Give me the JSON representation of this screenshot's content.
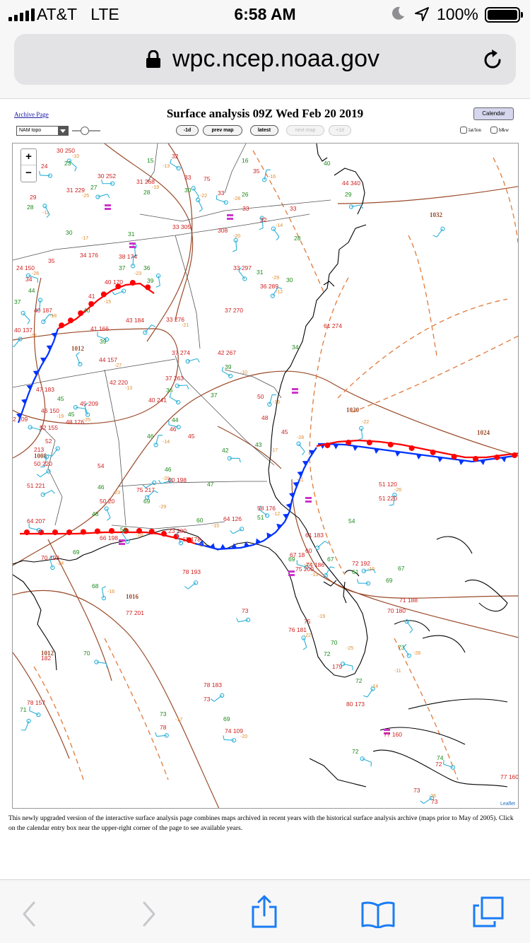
{
  "status_bar": {
    "carrier": "AT&T",
    "network": "LTE",
    "time": "6:58 AM",
    "battery": "100%",
    "icons": [
      "signal-icon",
      "moon-icon",
      "location-icon",
      "battery-icon"
    ]
  },
  "browser": {
    "url": "wpc.ncep.noaa.gov",
    "icons": [
      "lock-icon",
      "reload-icon"
    ]
  },
  "page": {
    "archive_link": "Archive Page",
    "title": "Surface analysis 09Z Wed Feb 20 2019",
    "calendar_button": "Calendar",
    "layer_select": "NAM topo",
    "buttons": {
      "minus1d": "-1d",
      "prev_map": "prev map",
      "latest": "latest",
      "next_map": "next map",
      "plus1d": "+1d"
    },
    "options": {
      "latlon": "lat/lon",
      "bw": "b&w"
    },
    "footer": "This newly upgraded version of the interactive surface analysis page combines maps archived in recent years with the historical surface analysis archive (maps prior to May of 2005). Click on the calendar entry box near the upper-right corner of the page to see available years."
  },
  "map": {
    "zoom_in": "+",
    "zoom_out": "−",
    "attribution": "Leaflet",
    "isobars": [
      "1032",
      "1012",
      "1008",
      "1020",
      "1024",
      "1016",
      "1012"
    ],
    "colors": {
      "isobar": "#9a4a2a",
      "trough": "#e07a3a",
      "cold_front": "#0033ff",
      "warm_front": "#ff0000",
      "station_red": "#d02020",
      "station_green": "#1a8a1a",
      "station_orange": "#e08a2a",
      "wind": "#2ab0d8",
      "coast": "#000000",
      "border": "#555555",
      "highlight": "#cc33cc"
    },
    "stations": [
      {
        "t": "30 250",
        "c": "red"
      },
      {
        "t": "23",
        "c": "green"
      },
      {
        "t": "24",
        "c": "red"
      },
      {
        "t": "15",
        "c": "green"
      },
      {
        "t": "32",
        "c": "red"
      },
      {
        "t": "16",
        "c": "green"
      },
      {
        "t": "35",
        "c": "red"
      },
      {
        "t": "40",
        "c": "green"
      },
      {
        "t": "30 252",
        "c": "red"
      },
      {
        "t": "31 268",
        "c": "red"
      },
      {
        "t": "33",
        "c": "red"
      },
      {
        "t": "75",
        "c": "red"
      },
      {
        "t": "30",
        "c": "green"
      },
      {
        "t": "44 340",
        "c": "red"
      },
      {
        "t": "29",
        "c": "green"
      },
      {
        "t": "31 229",
        "c": "red"
      },
      {
        "t": "27",
        "c": "green"
      },
      {
        "t": "28",
        "c": "green"
      },
      {
        "t": "33",
        "c": "red"
      },
      {
        "t": "26",
        "c": "green"
      },
      {
        "t": "29",
        "c": "red"
      },
      {
        "t": "28",
        "c": "green"
      },
      {
        "t": "33",
        "c": "red"
      },
      {
        "t": "33",
        "c": "red"
      },
      {
        "t": "32",
        "c": "red"
      },
      {
        "t": "28",
        "c": "green"
      },
      {
        "t": "1032",
        "c": "isobar"
      },
      {
        "t": "30",
        "c": "green"
      },
      {
        "t": "31",
        "c": "green"
      },
      {
        "t": "33 305",
        "c": "red"
      },
      {
        "t": "308",
        "c": "red"
      },
      {
        "t": "34 176",
        "c": "red"
      },
      {
        "t": "38 174",
        "c": "red"
      },
      {
        "t": "37",
        "c": "green"
      },
      {
        "t": "36",
        "c": "green"
      },
      {
        "t": "35",
        "c": "red"
      },
      {
        "t": "24 150",
        "c": "red"
      },
      {
        "t": "34",
        "c": "red"
      },
      {
        "t": "33 297",
        "c": "red"
      },
      {
        "t": "31",
        "c": "green"
      },
      {
        "t": "40 170",
        "c": "red"
      },
      {
        "t": "39",
        "c": "green"
      },
      {
        "t": "36 289",
        "c": "red"
      },
      {
        "t": "30",
        "c": "green"
      },
      {
        "t": "44",
        "c": "green"
      },
      {
        "t": "41",
        "c": "red"
      },
      {
        "t": "37",
        "c": "green"
      },
      {
        "t": "37 270",
        "c": "red"
      },
      {
        "t": "40 187",
        "c": "red"
      },
      {
        "t": "40",
        "c": "green"
      },
      {
        "t": "43 184",
        "c": "red"
      },
      {
        "t": "33 276",
        "c": "red"
      },
      {
        "t": "41 166",
        "c": "red"
      },
      {
        "t": "61 274",
        "c": "red"
      },
      {
        "t": "40 137",
        "c": "red"
      },
      {
        "t": "39",
        "c": "green"
      },
      {
        "t": "1012",
        "c": "isobar"
      },
      {
        "t": "44 157",
        "c": "red"
      },
      {
        "t": "37 274",
        "c": "red"
      },
      {
        "t": "42 267",
        "c": "red"
      },
      {
        "t": "39",
        "c": "green"
      },
      {
        "t": "34",
        "c": "green"
      },
      {
        "t": "37 263",
        "c": "red"
      },
      {
        "t": "42 220",
        "c": "red"
      },
      {
        "t": "36",
        "c": "green"
      },
      {
        "t": "37",
        "c": "green"
      },
      {
        "t": "50",
        "c": "red"
      },
      {
        "t": "47 183",
        "c": "red"
      },
      {
        "t": "45",
        "c": "green"
      },
      {
        "t": "46 150",
        "c": "red"
      },
      {
        "t": "45 209",
        "c": "red"
      },
      {
        "t": "40 241",
        "c": "red"
      },
      {
        "t": "1020",
        "c": "isobar"
      },
      {
        "t": "48 176",
        "c": "red"
      },
      {
        "t": "2 109",
        "c": "red"
      },
      {
        "t": "45",
        "c": "green"
      },
      {
        "t": "44",
        "c": "green"
      },
      {
        "t": "48",
        "c": "red"
      },
      {
        "t": "45",
        "c": "red"
      },
      {
        "t": "46",
        "c": "red"
      },
      {
        "t": "213",
        "c": "red"
      },
      {
        "t": "1024",
        "c": "isobar"
      },
      {
        "t": "52",
        "c": "red"
      },
      {
        "t": "52 155",
        "c": "red"
      },
      {
        "t": "46",
        "c": "green"
      },
      {
        "t": "45",
        "c": "red"
      },
      {
        "t": "42",
        "c": "green"
      },
      {
        "t": "43",
        "c": "green"
      },
      {
        "t": "50 220",
        "c": "red"
      },
      {
        "t": "54",
        "c": "red"
      },
      {
        "t": "1008",
        "c": "isobar"
      },
      {
        "t": "50 198",
        "c": "red"
      },
      {
        "t": "46",
        "c": "green"
      },
      {
        "t": "46",
        "c": "green"
      },
      {
        "t": "51 221",
        "c": "red"
      },
      {
        "t": "47",
        "c": "green"
      },
      {
        "t": "51 120",
        "c": "red"
      },
      {
        "t": "51 220",
        "c": "red"
      },
      {
        "t": "75 217",
        "c": "red"
      },
      {
        "t": "69",
        "c": "green"
      },
      {
        "t": "50 20",
        "c": "red"
      },
      {
        "t": "48",
        "c": "green"
      },
      {
        "t": "58 176",
        "c": "red"
      },
      {
        "t": "51",
        "c": "green"
      },
      {
        "t": "64 207",
        "c": "red"
      },
      {
        "t": "60",
        "c": "green"
      },
      {
        "t": "64 126",
        "c": "red"
      },
      {
        "t": "54",
        "c": "green"
      },
      {
        "t": "56",
        "c": "green"
      },
      {
        "t": "66 198",
        "c": "red"
      },
      {
        "t": "23 200",
        "c": "red"
      },
      {
        "t": "62 178",
        "c": "red"
      },
      {
        "t": "61 183",
        "c": "red"
      },
      {
        "t": "60",
        "c": "red"
      },
      {
        "t": "70 193",
        "c": "red"
      },
      {
        "t": "69",
        "c": "green"
      },
      {
        "t": "67 18",
        "c": "red"
      },
      {
        "t": "69",
        "c": "green"
      },
      {
        "t": "74 186",
        "c": "red"
      },
      {
        "t": "67",
        "c": "green"
      },
      {
        "t": "72 192",
        "c": "red"
      },
      {
        "t": "67",
        "c": "green"
      },
      {
        "t": "78 193",
        "c": "red"
      },
      {
        "t": "75 200",
        "c": "red"
      },
      {
        "t": "61",
        "c": "green"
      },
      {
        "t": "69",
        "c": "green"
      },
      {
        "t": "68",
        "c": "green"
      },
      {
        "t": "77 201",
        "c": "red"
      },
      {
        "t": "73",
        "c": "red"
      },
      {
        "t": "1016",
        "c": "isobar"
      },
      {
        "t": "70 180",
        "c": "red"
      },
      {
        "t": "71 188",
        "c": "red"
      },
      {
        "t": "76 181",
        "c": "red"
      },
      {
        "t": "75",
        "c": "red"
      },
      {
        "t": "70",
        "c": "green"
      },
      {
        "t": "70",
        "c": "green"
      },
      {
        "t": "72",
        "c": "green"
      },
      {
        "t": "179",
        "c": "red"
      },
      {
        "t": "73",
        "c": "green"
      },
      {
        "t": "182",
        "c": "red"
      },
      {
        "t": "71",
        "c": "green"
      },
      {
        "t": "1012",
        "c": "isobar"
      },
      {
        "t": "78 183",
        "c": "red"
      },
      {
        "t": "73",
        "c": "red"
      },
      {
        "t": "72",
        "c": "green"
      },
      {
        "t": "80 173",
        "c": "red"
      },
      {
        "t": "78 157",
        "c": "red"
      },
      {
        "t": "73",
        "c": "green"
      },
      {
        "t": "78",
        "c": "red"
      },
      {
        "t": "69",
        "c": "green"
      },
      {
        "t": "74 109",
        "c": "red"
      },
      {
        "t": "77 160",
        "c": "red"
      },
      {
        "t": "72",
        "c": "green"
      },
      {
        "t": "77 160",
        "c": "red"
      },
      {
        "t": "74",
        "c": "green"
      },
      {
        "t": "72",
        "c": "red"
      },
      {
        "t": "73",
        "c": "red"
      },
      {
        "t": "73",
        "c": "red"
      },
      {
        "t": "70",
        "c": "red"
      },
      {
        "t": "68",
        "c": "green"
      },
      {
        "t": "79",
        "c": "red"
      },
      {
        "t": "72",
        "c": "green"
      }
    ]
  }
}
